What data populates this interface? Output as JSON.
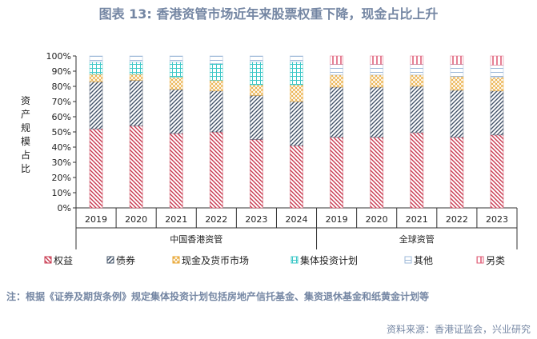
{
  "chart_data": {
    "type": "bar",
    "stacked": true,
    "title": "图表 13: 香港资管市场近年来股票权重下降，现金占比上升",
    "ylabel": "资产规模占比",
    "ylim": [
      0,
      100
    ],
    "yticks": [
      "0%",
      "10%",
      "20%",
      "30%",
      "40%",
      "50%",
      "60%",
      "70%",
      "80%",
      "90%",
      "100%"
    ],
    "groups": [
      {
        "label": "中国香港资管",
        "categories": [
          "2019",
          "2020",
          "2021",
          "2022",
          "2023",
          "2024"
        ]
      },
      {
        "label": "全球资管",
        "categories": [
          "2019",
          "2020",
          "2021",
          "2022",
          "2023"
        ]
      }
    ],
    "series": [
      {
        "name": "权益",
        "color": "#c8384f",
        "pattern": "diag-right",
        "values": [
          52,
          54,
          49,
          50,
          45,
          41,
          46.5,
          46.5,
          49.5,
          46.5,
          48
        ]
      },
      {
        "name": "债券",
        "color": "#44546a",
        "pattern": "diag-left",
        "values": [
          31,
          30,
          29,
          27,
          29,
          29,
          33,
          33,
          30.5,
          31,
          29
        ]
      },
      {
        "name": "现金及货币市场",
        "color": "#e8a530",
        "pattern": "cross",
        "values": [
          5,
          4,
          8,
          7,
          7,
          11,
          8,
          8,
          7.5,
          9,
          9
        ]
      },
      {
        "name": "集体投资计划",
        "color": "#3fc8c8",
        "pattern": "grid",
        "values": [
          8,
          8,
          10,
          11,
          15,
          15,
          0,
          0,
          0,
          0,
          0
        ]
      },
      {
        "name": "其他",
        "color": "#9db8d8",
        "pattern": "horiz",
        "values": [
          4,
          4,
          4,
          5,
          4,
          4,
          7,
          7,
          7,
          8,
          8
        ]
      },
      {
        "name": "另类",
        "color": "#e0607a",
        "pattern": "vert",
        "values": [
          0,
          0,
          0,
          0,
          0,
          0,
          5.5,
          5.5,
          5.5,
          5.5,
          6
        ]
      }
    ]
  },
  "note": "注：根据《证券及期货条例》规定集体投资计划包括房地产信托基金、集资退休基金和纸黄金计划等",
  "source": "资料来源：香港证监会，兴业研究"
}
